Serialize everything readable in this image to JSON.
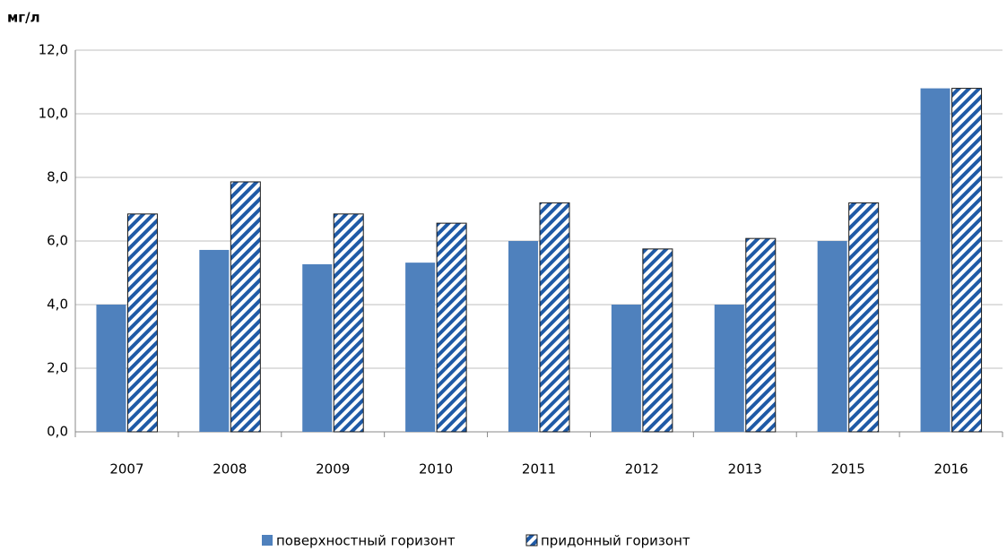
{
  "chart_data": {
    "type": "bar",
    "y_unit": "мг/л",
    "categories": [
      "2007",
      "2008",
      "2009",
      "2010",
      "2011",
      "2012",
      "2013",
      "2015",
      "2016"
    ],
    "series": [
      {
        "name": "поверхностный горизонт",
        "color": "#4f81bd",
        "pattern": "solid",
        "values": [
          4.0,
          5.72,
          5.27,
          5.32,
          6.0,
          4.0,
          4.0,
          6.0,
          10.8
        ]
      },
      {
        "name": "придонный горизонт",
        "color": "#1f5aa6",
        "pattern": "hatch",
        "values": [
          6.85,
          7.86,
          6.85,
          6.56,
          7.2,
          5.75,
          6.08,
          7.2,
          10.8
        ]
      }
    ],
    "ylim": [
      0,
      12
    ],
    "yticks": [
      {
        "value": 0,
        "label": "0,0"
      },
      {
        "value": 2,
        "label": "2,0"
      },
      {
        "value": 4,
        "label": "4,0"
      },
      {
        "value": 6,
        "label": "6,0"
      },
      {
        "value": 8,
        "label": "8,0"
      },
      {
        "value": 10,
        "label": "10,0"
      },
      {
        "value": 12,
        "label": "12,0"
      }
    ],
    "grid": true
  }
}
